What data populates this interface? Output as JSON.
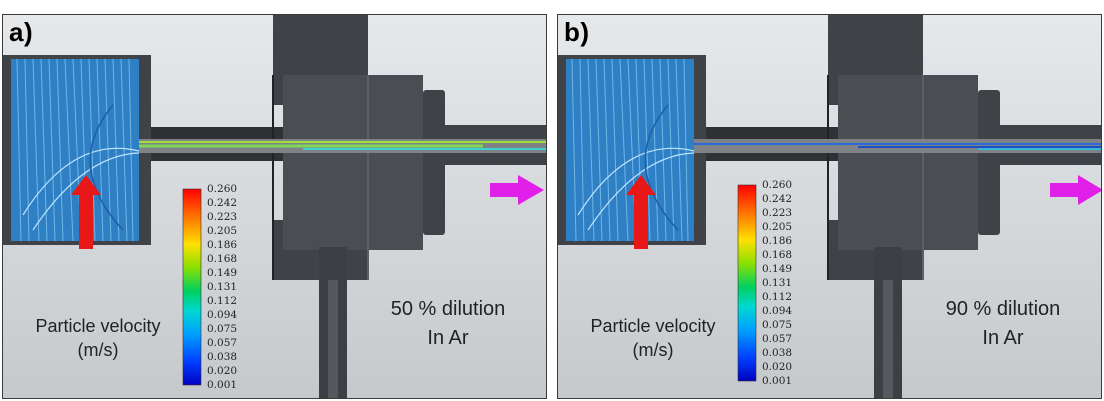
{
  "panels": [
    {
      "id": "a",
      "letter": "a)",
      "velocity_label_line1": "Particle velocity",
      "velocity_label_line2": "(m/s)",
      "dilution_line1": "50 % dilution",
      "dilution_line2": "In Ar",
      "jet_colors": [
        "#9fe03a",
        "#7fd65a",
        "#3ecfd0"
      ]
    },
    {
      "id": "b",
      "letter": "b)",
      "velocity_label_line1": "Particle velocity",
      "velocity_label_line2": "(m/s)",
      "dilution_line1": "90 % dilution",
      "dilution_line2": "In Ar",
      "jet_colors": [
        "#2a6ad8",
        "#1e4fc4",
        "#36b8d8"
      ]
    }
  ],
  "colorbar": {
    "ticks": [
      "0.260",
      "0.242",
      "0.223",
      "0.205",
      "0.186",
      "0.168",
      "0.149",
      "0.131",
      "0.112",
      "0.094",
      "0.075",
      "0.057",
      "0.038",
      "0.020",
      "0.001"
    ],
    "colors": [
      "#ff0000",
      "#ff7a00",
      "#ffe000",
      "#8be000",
      "#00d060",
      "#00d8d0",
      "#00a0ff",
      "#0040ff",
      "#0000c0"
    ]
  },
  "colors": {
    "inlet_arrow": "#e81818",
    "outlet_arrow": "#e020e8",
    "chamber_streamlines": "#3a9ad8",
    "hardware": "#3f4246"
  }
}
